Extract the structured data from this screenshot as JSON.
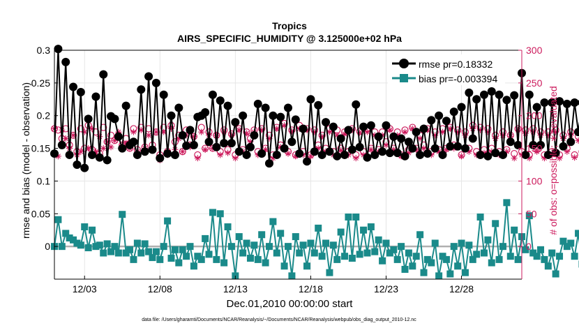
{
  "chart_data": {
    "type": "line",
    "title": "Tropics",
    "subtitle": "AIRS_SPECIFIC_HUMIDITY @ 3.125000e+02 hPa",
    "xlabel": "Dec.01,2010 00:00:00 start",
    "ylabel_left": "rmse and bias (model - observation)",
    "ylabel_right": "# of obs: o=possible; ∗=evaluated",
    "footer": "data file: /Users/gharamti/Documents/NCAR/Reanalysis/~/Documents/NCAR/Reanalysis/webpub/obs_diag_output_2010-12.nc",
    "xlim": [
      1,
      32
    ],
    "ylim_left": [
      -0.05,
      0.3
    ],
    "ylim_right": [
      -50,
      300
    ],
    "x_ticks": [
      3,
      8,
      13,
      18,
      23,
      28
    ],
    "x_tick_labels": [
      "12/03",
      "12/08",
      "12/13",
      "12/18",
      "12/23",
      "12/28"
    ],
    "left_ticks": [
      0,
      0.05,
      0.1,
      0.15,
      0.2,
      0.25,
      0.3
    ],
    "left_tick_labels": [
      "0",
      "0.05",
      "0.1",
      "0.15",
      "0.2",
      "0.25",
      "0.3"
    ],
    "right_ticks": [
      0,
      50,
      100,
      150,
      200,
      250,
      300
    ],
    "right_tick_labels": [
      "0",
      "50",
      "100",
      "150",
      "200",
      "250",
      "300"
    ],
    "legend": {
      "position": "top-right",
      "entries": [
        "rmse pr=0.18332",
        "bias pr=-0.003394"
      ]
    },
    "colors": {
      "rmse": "#000000",
      "bias": "#1a8a8a",
      "obs": "#cc1a5c",
      "zero_line": "#b0b0b0",
      "axis": "#000000",
      "right_axis": "#cc1a5c"
    },
    "x_start": 1.0,
    "x_step": 0.25,
    "series": [
      {
        "name": "rmse",
        "axis": "left",
        "values": [
          0.142,
          0.302,
          0.155,
          0.282,
          0.14,
          0.244,
          0.125,
          0.236,
          0.12,
          0.195,
          0.14,
          0.229,
          0.136,
          0.263,
          0.132,
          0.199,
          0.195,
          0.168,
          0.15,
          0.215,
          0.155,
          0.16,
          0.14,
          0.24,
          0.145,
          0.26,
          0.148,
          0.25,
          0.135,
          0.232,
          0.142,
          0.2,
          0.14,
          0.212,
          0.17,
          0.154,
          0.178,
          0.155,
          0.198,
          0.2,
          0.205,
          0.16,
          0.232,
          0.152,
          0.223,
          0.158,
          0.215,
          0.158,
          0.19,
          0.145,
          0.2,
          0.14,
          0.152,
          0.17,
          0.218,
          0.142,
          0.212,
          0.127,
          0.2,
          0.14,
          0.198,
          0.15,
          0.212,
          0.16,
          0.194,
          0.142,
          0.18,
          0.13,
          0.225,
          0.145,
          0.216,
          0.14,
          0.19,
          0.145,
          0.183,
          0.138,
          0.165,
          0.14,
          0.178,
          0.148,
          0.217,
          0.152,
          0.183,
          0.136,
          0.185,
          0.14,
          0.168,
          0.145,
          0.185,
          0.143,
          0.168,
          0.143,
          0.165,
          0.138,
          0.16,
          0.15,
          0.175,
          0.14,
          0.18,
          0.142,
          0.193,
          0.15,
          0.2,
          0.14,
          0.192,
          0.153,
          0.206,
          0.153,
          0.213,
          0.15,
          0.235,
          0.165,
          0.225,
          0.14,
          0.232,
          0.138,
          0.237,
          0.143,
          0.232,
          0.14,
          0.224,
          0.16,
          0.231,
          0.155,
          0.265,
          0.14,
          0.232,
          0.155,
          0.213,
          0.155,
          0.22,
          0.14,
          0.22,
          0.143,
          0.222,
          0.153,
          0.218,
          0.16,
          0.22,
          0.175,
          0.22,
          0.18,
          0.25
        ]
      },
      {
        "name": "bias",
        "axis": "left",
        "values": [
          0.0,
          0.041,
          0.0,
          0.02,
          0.013,
          0.01,
          0.005,
          0.002,
          0.03,
          -0.002,
          0.025,
          0.0,
          0.002,
          -0.01,
          0.004,
          -0.008,
          0.0,
          -0.01,
          0.049,
          -0.01,
          -0.005,
          -0.02,
          0.005,
          -0.01,
          0.004,
          -0.008,
          -0.017,
          -0.008,
          -0.02,
          0.0,
          0.039,
          -0.018,
          -0.005,
          -0.025,
          -0.005,
          -0.015,
          0.0,
          -0.03,
          -0.015,
          -0.02,
          0.012,
          -0.012,
          0.052,
          -0.02,
          0.05,
          -0.025,
          0.03,
          0.0,
          -0.045,
          0.015,
          -0.01,
          0.005,
          -0.018,
          0.002,
          -0.02,
          0.018,
          -0.025,
          0.0,
          0.038,
          -0.01,
          0.02,
          -0.03,
          0.0,
          -0.045,
          0.015,
          -0.01,
          0.002,
          -0.03,
          0.005,
          -0.01,
          0.028,
          -0.015,
          0.005,
          -0.04,
          0.002,
          -0.02,
          0.022,
          -0.015,
          0.045,
          -0.018,
          0.045,
          -0.012,
          0.025,
          -0.01,
          0.03,
          -0.008,
          0.01,
          -0.022,
          0.005,
          -0.01,
          -0.005,
          -0.02,
          0.0,
          -0.035,
          -0.01,
          -0.03,
          -0.015,
          0.018,
          -0.04,
          -0.02,
          -0.025,
          0.005,
          -0.045,
          -0.015,
          -0.02,
          -0.042,
          0.0,
          -0.03,
          0.005,
          -0.04,
          0.002,
          -0.02,
          -0.012,
          0.045,
          -0.01,
          0.01,
          -0.025,
          0.035,
          -0.02,
          0.0,
          0.067,
          -0.015,
          0.025,
          -0.02,
          0.015,
          -0.005,
          0.047,
          -0.01,
          -0.015,
          -0.005,
          -0.02,
          -0.03,
          -0.01,
          -0.042,
          -0.015,
          0.008,
          0.0,
          0.005,
          -0.015,
          0.02,
          -0.027,
          0.018
        ]
      },
      {
        "name": "obs_possible",
        "axis": "right",
        "values": [
          180,
          178,
          165,
          180,
          155,
          170,
          145,
          180,
          150,
          185,
          148,
          175,
          142,
          182,
          160,
          170,
          162,
          170,
          155,
          165,
          150,
          180,
          148,
          182,
          152,
          180,
          155,
          175,
          140,
          182,
          145,
          185,
          160,
          170,
          145,
          178,
          155,
          168,
          140,
          182,
          150,
          175,
          150,
          170,
          145,
          178,
          148,
          172,
          140,
          180,
          148,
          175,
          165,
          178,
          145,
          180,
          150,
          170,
          140,
          182,
          155,
          188,
          145,
          178,
          140,
          185,
          145,
          180,
          140,
          178,
          155,
          170,
          150,
          180,
          145,
          178,
          150,
          175,
          145,
          180,
          140,
          176,
          145,
          180,
          150,
          175,
          148,
          175,
          160,
          180,
          150,
          175,
          140,
          178,
          148,
          182,
          150,
          170,
          155,
          180,
          145,
          175,
          148,
          180,
          150,
          182,
          155,
          178,
          140,
          175,
          150,
          185,
          145,
          182,
          148,
          180,
          150,
          170,
          145,
          175,
          148,
          170,
          142,
          180,
          145,
          178,
          140,
          180,
          148,
          175,
          140,
          175,
          145,
          178,
          140,
          170,
          150,
          175,
          140,
          168,
          145,
          178,
          150,
          148
        ]
      },
      {
        "name": "obs_evaluated",
        "axis": "right",
        "values": [
          180,
          138,
          178,
          165,
          150,
          170,
          140,
          145,
          175,
          150,
          180,
          145,
          168,
          150,
          160,
          152,
          162,
          175,
          155,
          158,
          150,
          175,
          145,
          178,
          150,
          170,
          148,
          175,
          132,
          175,
          140,
          180,
          148,
          165,
          145,
          170,
          152,
          168,
          135,
          175,
          148,
          170,
          150,
          170,
          140,
          175,
          143,
          170,
          135,
          178,
          145,
          173,
          160,
          175,
          140,
          178,
          148,
          165,
          135,
          180,
          152,
          185,
          142,
          176,
          138,
          180,
          140,
          178,
          138,
          175,
          150,
          168,
          145,
          175,
          140,
          170,
          147,
          172,
          140,
          178,
          135,
          174,
          140,
          175,
          148,
          170,
          145,
          170,
          155,
          178,
          148,
          170,
          138,
          175,
          143,
          180,
          148,
          165,
          150,
          178,
          140,
          170,
          145,
          175,
          148,
          180,
          150,
          175,
          138,
          170,
          145,
          180,
          140,
          178,
          143,
          175,
          145,
          165,
          140,
          170,
          145,
          168,
          135,
          178,
          140,
          173,
          135,
          175,
          145,
          170,
          135,
          170,
          140,
          175,
          135,
          165,
          145,
          170,
          136,
          162,
          140,
          175,
          145,
          147
        ]
      }
    ]
  }
}
